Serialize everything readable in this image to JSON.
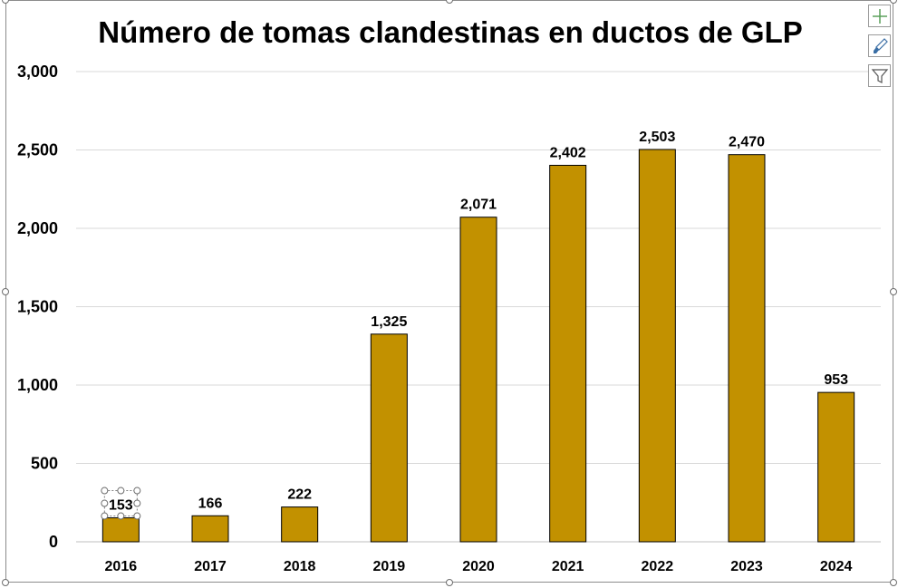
{
  "chart_data": {
    "type": "bar",
    "title": "Número de tomas clandestinas en ductos de GLP",
    "categories": [
      "2016",
      "2017",
      "2018",
      "2019",
      "2020",
      "2021",
      "2022",
      "2023",
      "2024"
    ],
    "values": [
      153,
      166,
      222,
      1325,
      2071,
      2402,
      2503,
      2470,
      953
    ],
    "data_labels": [
      "153",
      "166",
      "222",
      "1,325",
      "2,071",
      "2,402",
      "2,503",
      "2,470",
      "953"
    ],
    "y_ticks": [
      0,
      500,
      1000,
      1500,
      2000,
      2500,
      3000
    ],
    "y_tick_labels": [
      "0",
      "500",
      "1,000",
      "1,500",
      "2,000",
      "2,500",
      "3,000"
    ],
    "ylim": [
      0,
      3000
    ],
    "xlabel": "",
    "ylabel": "",
    "grid": true,
    "legend": "none",
    "bar_color": "#C29100",
    "bar_edge_color": "#000000",
    "selected_label_index": 0
  },
  "side_buttons": [
    {
      "name": "chart-elements-button",
      "icon": "plus-icon"
    },
    {
      "name": "chart-styles-button",
      "icon": "paintbrush-icon"
    },
    {
      "name": "chart-filters-button",
      "icon": "filter-icon"
    }
  ]
}
